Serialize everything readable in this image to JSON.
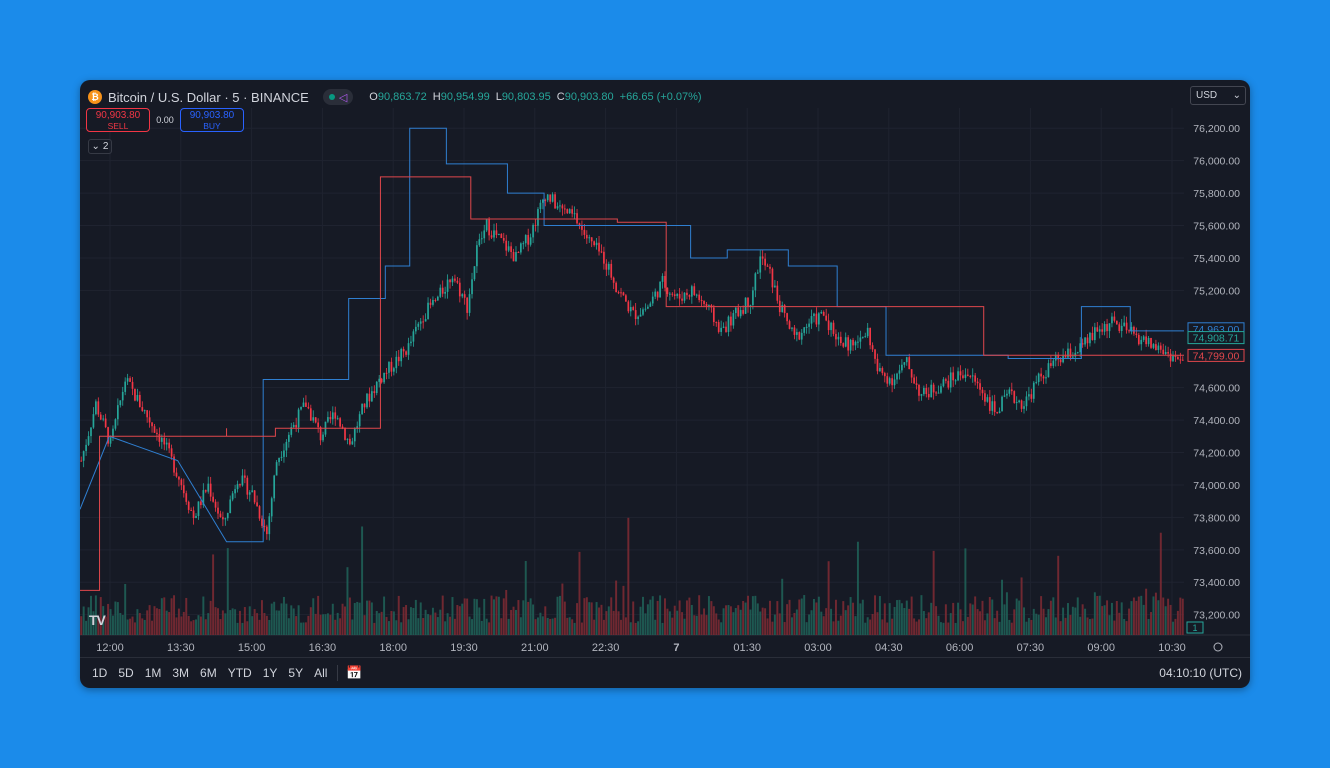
{
  "header": {
    "icon": "bitcoin-icon",
    "symbol": "Bitcoin / U.S. Dollar · 5 · BINANCE",
    "ohlc": {
      "o_label": "O",
      "o": "90,863.72",
      "h_label": "H",
      "h": "90,954.99",
      "l_label": "L",
      "l": "90,803.95",
      "c_label": "C",
      "c": "90,903.80",
      "change": "+66.65 (+0.07%)"
    }
  },
  "trade": {
    "sell_price": "90,903.80",
    "sell_label": "SELL",
    "spread": "0.00",
    "buy_price": "90,903.80",
    "buy_label": "BUY"
  },
  "collapse": {
    "count": "2"
  },
  "currency": {
    "value": "USD"
  },
  "bottombar": {
    "ranges": [
      "1D",
      "5D",
      "1M",
      "3M",
      "6M",
      "YTD",
      "1Y",
      "5Y",
      "All"
    ],
    "clock": "04:10:10 (UTC)"
  },
  "colors": {
    "up": "#26a69a",
    "down": "#f23645",
    "blue_line": "#2f7fd1",
    "red_line": "#e0474c"
  },
  "chart_data": {
    "type": "candlestick",
    "y_ticks": [
      "76,200.00",
      "76,000.00",
      "75,800.00",
      "75,600.00",
      "75,400.00",
      "75,200.00",
      "74,800.00",
      "74,600.00",
      "74,400.00",
      "74,200.00",
      "74,000.00",
      "73,800.00",
      "73,600.00",
      "73,400.00",
      "73,200.00"
    ],
    "ylim": [
      73050,
      76300
    ],
    "x_ticks": [
      "12:00",
      "13:30",
      "15:00",
      "16:30",
      "18:00",
      "19:30",
      "21:00",
      "22:30",
      "7",
      "01:30",
      "03:00",
      "04:30",
      "06:00",
      "07:30",
      "09:00",
      "10:30"
    ],
    "price_labels": [
      {
        "text": "74,963.00",
        "value": 74963,
        "color": "#2f7fd1"
      },
      {
        "text": "74,908.71",
        "value": 74908.71,
        "color": "#26a69a"
      },
      {
        "text": "74,799.00",
        "value": 74799,
        "color": "#e0474c"
      }
    ],
    "volume_label": "1",
    "close_path": [
      [
        0,
        74150
      ],
      [
        6,
        74500
      ],
      [
        12,
        74250
      ],
      [
        18,
        74650
      ],
      [
        22,
        74550
      ],
      [
        28,
        74400
      ],
      [
        34,
        74250
      ],
      [
        40,
        74050
      ],
      [
        46,
        73800
      ],
      [
        52,
        74000
      ],
      [
        58,
        73750
      ],
      [
        64,
        74050
      ],
      [
        70,
        73950
      ],
      [
        76,
        73700
      ],
      [
        80,
        74150
      ],
      [
        86,
        74350
      ],
      [
        92,
        74500
      ],
      [
        98,
        74300
      ],
      [
        104,
        74450
      ],
      [
        110,
        74250
      ],
      [
        116,
        74500
      ],
      [
        122,
        74650
      ],
      [
        128,
        74750
      ],
      [
        134,
        74850
      ],
      [
        140,
        75050
      ],
      [
        146,
        75150
      ],
      [
        152,
        75300
      ],
      [
        158,
        75100
      ],
      [
        162,
        75450
      ],
      [
        166,
        75600
      ],
      [
        172,
        75500
      ],
      [
        178,
        75400
      ],
      [
        184,
        75550
      ],
      [
        190,
        75800
      ],
      [
        196,
        75700
      ],
      [
        202,
        75650
      ],
      [
        208,
        75500
      ],
      [
        214,
        75400
      ],
      [
        220,
        75200
      ],
      [
        226,
        75050
      ],
      [
        232,
        75100
      ],
      [
        238,
        75250
      ],
      [
        244,
        75150
      ],
      [
        250,
        75200
      ],
      [
        256,
        75100
      ],
      [
        262,
        74950
      ],
      [
        268,
        75050
      ],
      [
        274,
        75150
      ],
      [
        278,
        75400
      ],
      [
        282,
        75300
      ],
      [
        286,
        75100
      ],
      [
        292,
        74900
      ],
      [
        298,
        75000
      ],
      [
        304,
        75050
      ],
      [
        310,
        74900
      ],
      [
        316,
        74850
      ],
      [
        322,
        74950
      ],
      [
        326,
        74700
      ],
      [
        332,
        74650
      ],
      [
        338,
        74750
      ],
      [
        344,
        74550
      ],
      [
        350,
        74600
      ],
      [
        356,
        74650
      ],
      [
        362,
        74700
      ],
      [
        368,
        74600
      ],
      [
        374,
        74450
      ],
      [
        380,
        74550
      ],
      [
        386,
        74500
      ],
      [
        392,
        74650
      ],
      [
        398,
        74750
      ],
      [
        404,
        74800
      ],
      [
        410,
        74850
      ],
      [
        416,
        74950
      ],
      [
        422,
        75000
      ],
      [
        428,
        74950
      ],
      [
        434,
        74900
      ],
      [
        440,
        74850
      ],
      [
        446,
        74800
      ],
      [
        452,
        74750
      ]
    ],
    "blue_step": [
      [
        0,
        73850
      ],
      [
        12,
        74300
      ],
      [
        40,
        74150
      ],
      [
        60,
        73650
      ],
      [
        75,
        73650
      ],
      [
        75,
        74650
      ],
      [
        110,
        74650
      ],
      [
        110,
        75150
      ],
      [
        125,
        75150
      ],
      [
        125,
        75350
      ],
      [
        135,
        75350
      ],
      [
        135,
        76200
      ],
      [
        150,
        76200
      ],
      [
        150,
        75980
      ],
      [
        175,
        75980
      ],
      [
        175,
        75800
      ],
      [
        190,
        75800
      ],
      [
        190,
        75600
      ],
      [
        250,
        75600
      ],
      [
        250,
        75400
      ],
      [
        265,
        75400
      ],
      [
        265,
        75450
      ],
      [
        290,
        75450
      ],
      [
        290,
        75350
      ],
      [
        310,
        75350
      ],
      [
        310,
        75100
      ],
      [
        330,
        75100
      ],
      [
        330,
        74800
      ],
      [
        350,
        74800
      ],
      [
        350,
        74800
      ],
      [
        380,
        74800
      ],
      [
        380,
        74780
      ],
      [
        410,
        74780
      ],
      [
        410,
        75100
      ],
      [
        430,
        75100
      ],
      [
        430,
        74950
      ],
      [
        452,
        74950
      ]
    ],
    "red_step": [
      [
        0,
        73350
      ],
      [
        8,
        73350
      ],
      [
        8,
        74300
      ],
      [
        60,
        74300
      ],
      [
        60,
        74350
      ],
      [
        60,
        74300
      ],
      [
        80,
        74300
      ],
      [
        80,
        74350
      ],
      [
        123,
        74350
      ],
      [
        123,
        75900
      ],
      [
        160,
        75900
      ],
      [
        160,
        75640
      ],
      [
        220,
        75640
      ],
      [
        220,
        75620
      ],
      [
        240,
        75620
      ],
      [
        240,
        75100
      ],
      [
        370,
        75100
      ],
      [
        370,
        74800
      ],
      [
        452,
        74800
      ]
    ]
  }
}
